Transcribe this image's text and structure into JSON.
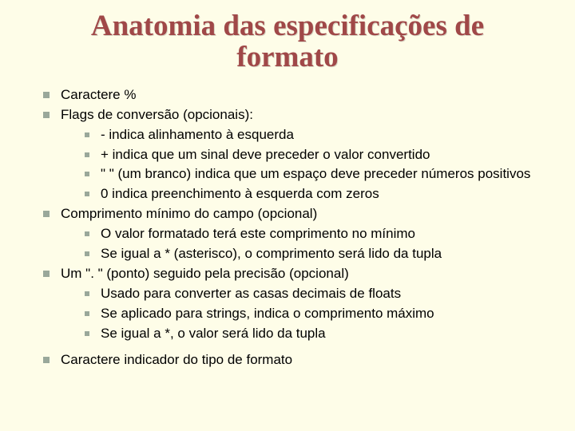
{
  "title_line1": "Anatomia das especificações de",
  "title_line2": "formato",
  "items": [
    {
      "text": "Caractere %"
    },
    {
      "text": "Flags de conversão (opcionais):",
      "sub": [
        "- indica alinhamento à esquerda",
        "+ indica que um sinal deve preceder o valor convertido",
        "\" \" (um branco) indica que um espaço deve preceder números positivos",
        "0 indica preenchimento à esquerda com zeros"
      ]
    },
    {
      "text": "Comprimento mínimo do campo (opcional)",
      "sub": [
        "O valor formatado terá este comprimento no mínimo",
        "Se igual a * (asterisco), o comprimento será  lido da tupla"
      ]
    },
    {
      "text": "Um \". \" (ponto) seguido pela precisão (opcional)",
      "sub": [
        "Usado para converter as casas decimais de floats",
        "Se aplicado para strings, indica o comprimento máximo",
        "Se igual a *, o valor será lido da tupla"
      ]
    },
    {
      "text": "Caractere indicador do tipo de formato",
      "gap": true
    }
  ]
}
